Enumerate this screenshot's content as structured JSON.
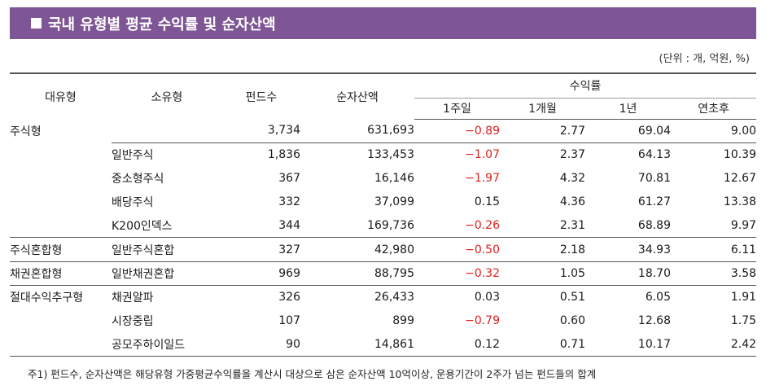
{
  "title": "국내 유형별 평균 수익률 및 순자산액",
  "unit_note": "(단위 : 개, 억원, %)",
  "headers": {
    "category": "대유형",
    "subcategory": "소유형",
    "fund_count": "펀드수",
    "net_assets": "순자산액",
    "yield": "수익률",
    "w1": "1주일",
    "m1": "1개월",
    "y1": "1년",
    "ytd": "연초후"
  },
  "rows": [
    {
      "category": "주식형",
      "subcategory": "",
      "fund_count": "3,734",
      "net_assets": "631,693",
      "w1": "−0.89",
      "m1": "2.77",
      "y1": "69.04",
      "ytd": "9.00"
    },
    {
      "category": "",
      "subcategory": "일반주식",
      "fund_count": "1,836",
      "net_assets": "133,453",
      "w1": "−1.07",
      "m1": "2.37",
      "y1": "64.13",
      "ytd": "10.39"
    },
    {
      "category": "",
      "subcategory": "중소형주식",
      "fund_count": "367",
      "net_assets": "16,146",
      "w1": "−1.97",
      "m1": "4.32",
      "y1": "70.81",
      "ytd": "12.67"
    },
    {
      "category": "",
      "subcategory": "배당주식",
      "fund_count": "332",
      "net_assets": "37,099",
      "w1": "0.15",
      "m1": "4.36",
      "y1": "61.27",
      "ytd": "13.38"
    },
    {
      "category": "",
      "subcategory": "K200인덱스",
      "fund_count": "344",
      "net_assets": "169,736",
      "w1": "−0.26",
      "m1": "2.31",
      "y1": "68.89",
      "ytd": "9.97"
    },
    {
      "category": "주식혼합형",
      "subcategory": "일반주식혼합",
      "fund_count": "327",
      "net_assets": "42,980",
      "w1": "−0.50",
      "m1": "2.18",
      "y1": "34.93",
      "ytd": "6.11"
    },
    {
      "category": "채권혼합형",
      "subcategory": "일반채권혼합",
      "fund_count": "969",
      "net_assets": "88,795",
      "w1": "−0.32",
      "m1": "1.05",
      "y1": "18.70",
      "ytd": "3.58"
    },
    {
      "category": "절대수익추구형",
      "subcategory": "채권알파",
      "fund_count": "326",
      "net_assets": "26,433",
      "w1": "0.03",
      "m1": "0.51",
      "y1": "6.05",
      "ytd": "1.91"
    },
    {
      "category": "",
      "subcategory": "시장중립",
      "fund_count": "107",
      "net_assets": "899",
      "w1": "−0.79",
      "m1": "0.60",
      "y1": "12.68",
      "ytd": "1.75"
    },
    {
      "category": "",
      "subcategory": "공모주하이일드",
      "fund_count": "90",
      "net_assets": "14,861",
      "w1": "0.12",
      "m1": "0.71",
      "y1": "10.17",
      "ytd": "2.42"
    }
  ],
  "footnote": "주1) 펀드수, 순자산액은 해당유형 가중평균수익률을 계산시 대상으로 삼은 순자산액 10억이상, 운용기간이 2주가 넘는 펀드들의 합계",
  "colors": {
    "title_bg": "#7e5595",
    "negative": "#e02020"
  }
}
